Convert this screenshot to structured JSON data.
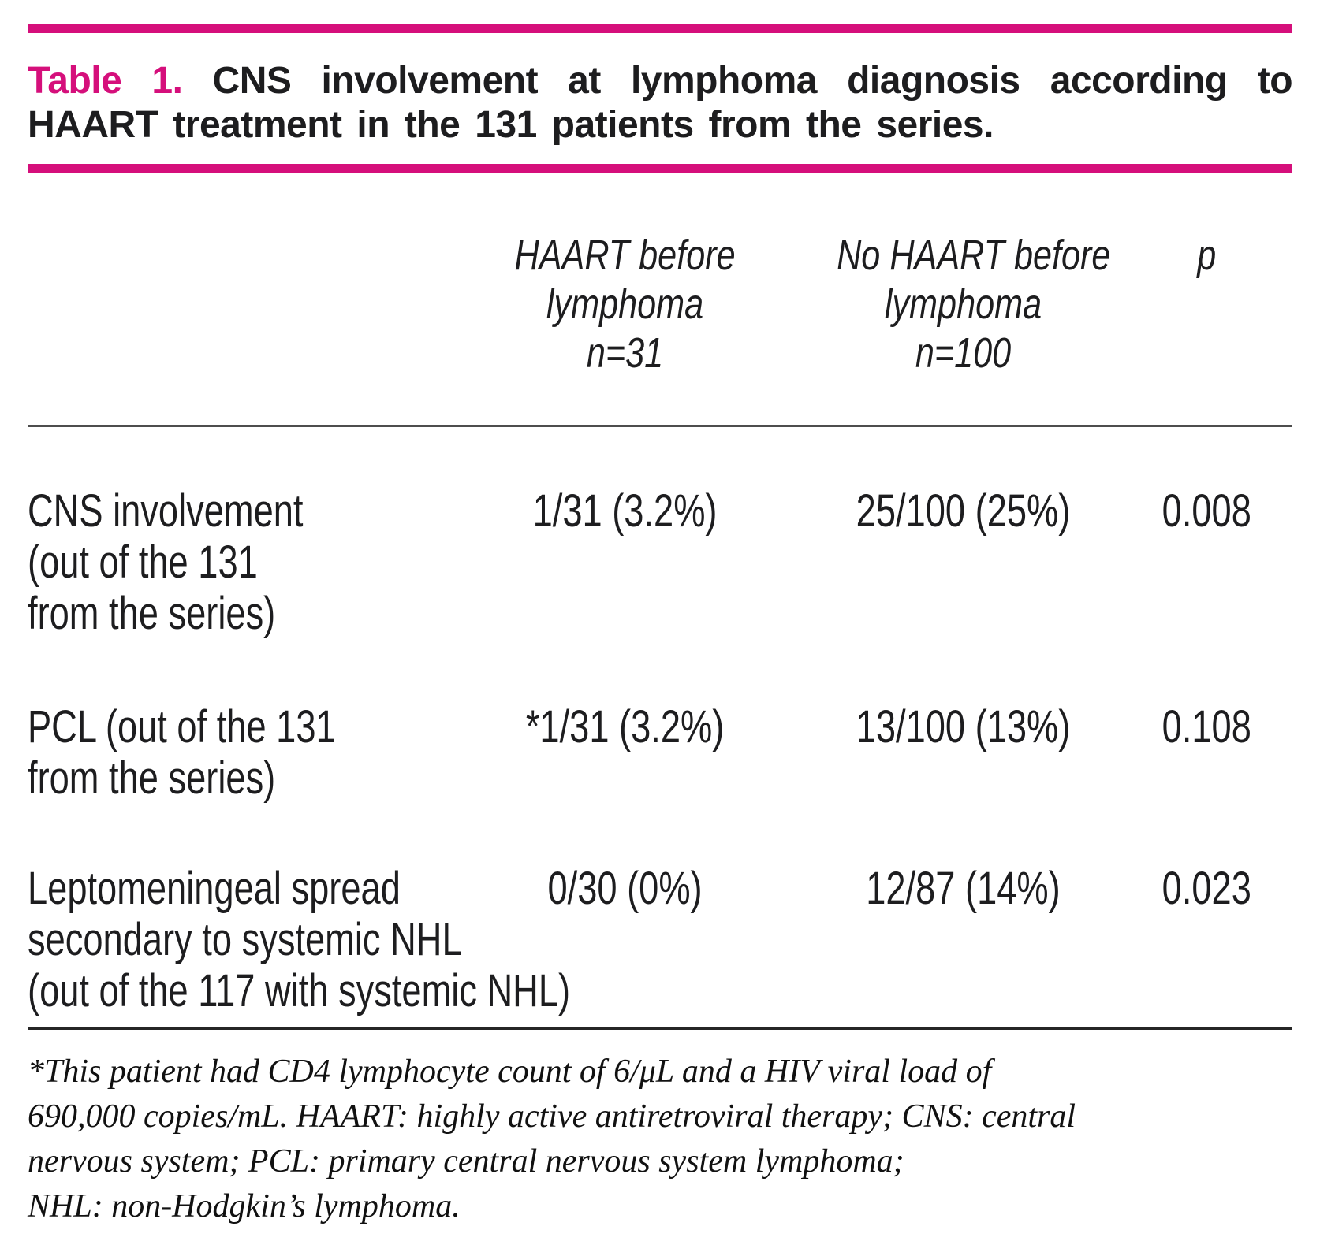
{
  "title": {
    "number_label": "Table 1.",
    "line1_rest": "CNS involvement at lymphoma diagnosis according to",
    "line2": "HAART treatment in the 131 patients from the series."
  },
  "table": {
    "columns": [
      "",
      "HAART before\nlymphoma\nn=31",
      "No HAART before\nlymphoma\nn=100",
      "p"
    ],
    "rows": [
      {
        "label": "CNS involvement\n(out of the 131\nfrom the series)",
        "haart_before": "1/31 (3.2%)",
        "no_haart_before": "25/100 (25%)",
        "p": "0.008"
      },
      {
        "label": "PCL (out of the 131\nfrom the series)",
        "haart_before": "*1/31 (3.2%)",
        "no_haart_before": "13/100 (13%)",
        "p": "0.108"
      },
      {
        "label": "Leptomeningeal spread\nsecondary to systemic NHL\n(out of the 117 with systemic NHL)",
        "haart_before": "0/30 (0%)",
        "no_haart_before": "12/87 (14%)",
        "p": "0.023"
      }
    ]
  },
  "footnote": "*This patient had CD4 lymphocyte count of 6/μL and a HIV viral load of\n690,000 copies/mL. HAART: highly active antiretroviral therapy; CNS: central\nnervous system; PCL: primary central nervous system lymphoma;\nNHL: non-Hodgkin’s lymphoma.",
  "colors": {
    "accent_magenta": "#d50f7b",
    "header_rule_gray": "#4d4d4d",
    "body_rule_black": "#262626",
    "text": "#1d1d1f"
  }
}
